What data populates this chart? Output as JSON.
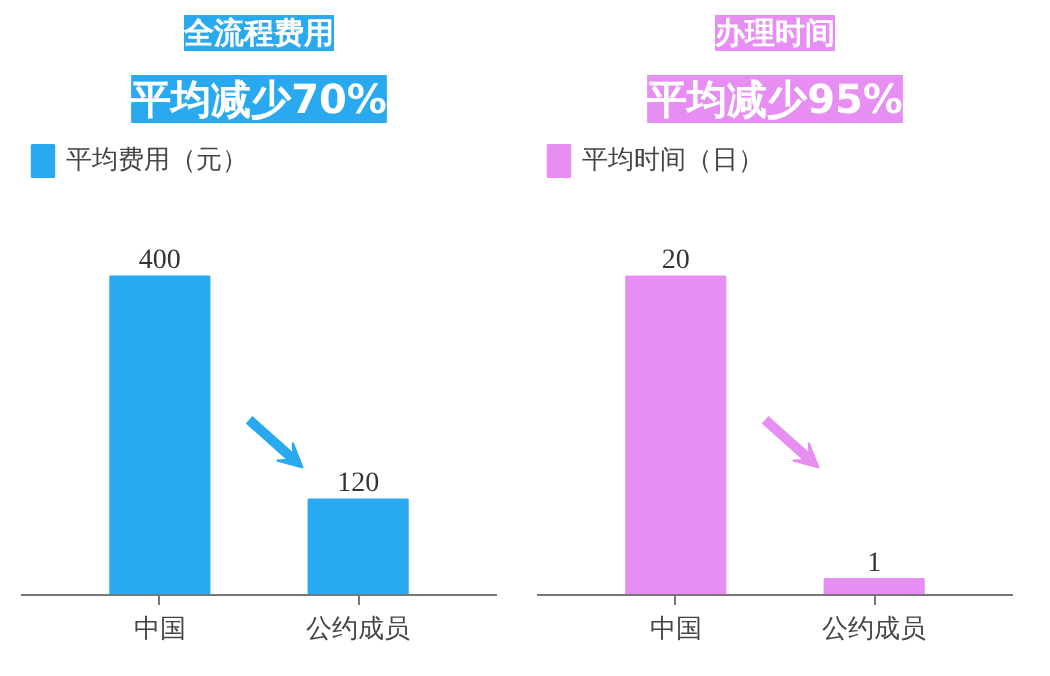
{
  "chart_data": [
    {
      "type": "bar",
      "title": "全流程费用",
      "subtitle": "平均减少70%",
      "categories": [
        "中国",
        "公约成员"
      ],
      "series": [
        {
          "name": "平均费用（元）",
          "color": "#29aaf0",
          "values": [
            400,
            120
          ]
        }
      ],
      "data_labels": true,
      "legend": "top left",
      "grid": false,
      "tick_labels": "x"
    },
    {
      "type": "bar",
      "title": "办理时间",
      "subtitle": "平均减少95%",
      "categories": [
        "中国",
        "公约成员"
      ],
      "series": [
        {
          "name": "平均时间（日）",
          "color": "#e68ef2",
          "values": [
            20,
            1
          ]
        }
      ],
      "data_labels": true,
      "legend": "top left",
      "grid": false,
      "tick_labels": "x"
    }
  ]
}
